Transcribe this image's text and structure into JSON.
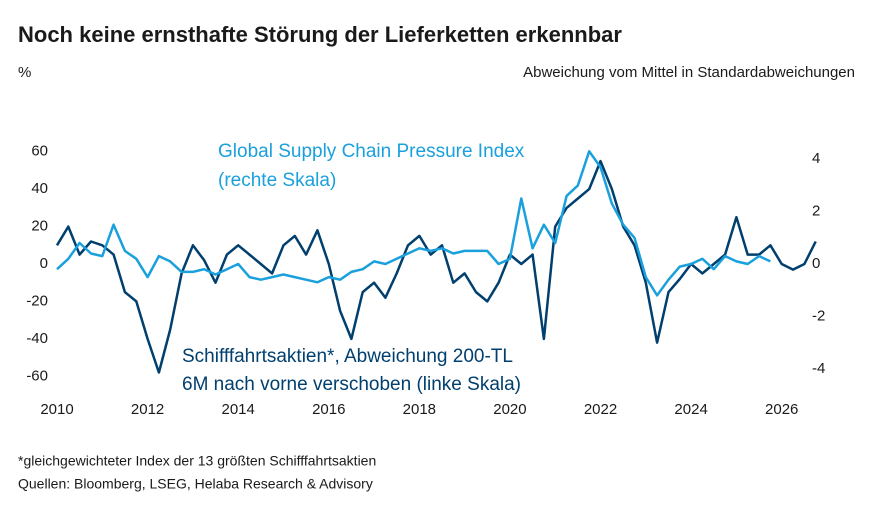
{
  "chart_data": {
    "type": "line",
    "title": "Noch keine ernsthafte Störung der Lieferketten erkennbar",
    "y_label": "%",
    "y2_label": "Abweichung vom Mittel in Standardabweichungen",
    "footnotes": [
      "*gleichgewichteter Index der 13 größten Schifffahrtsaktien",
      "Quellen: Bloomberg, LSEG, Helaba Research & Advisory"
    ],
    "x": [
      2010.0,
      2010.25,
      2010.5,
      2010.75,
      2011.0,
      2011.25,
      2011.5,
      2011.75,
      2012.0,
      2012.25,
      2012.5,
      2012.75,
      2013.0,
      2013.25,
      2013.5,
      2013.75,
      2014.0,
      2014.25,
      2014.5,
      2014.75,
      2015.0,
      2015.25,
      2015.5,
      2015.75,
      2016.0,
      2016.25,
      2016.5,
      2016.75,
      2017.0,
      2017.25,
      2017.5,
      2017.75,
      2018.0,
      2018.25,
      2018.5,
      2018.75,
      2019.0,
      2019.25,
      2019.5,
      2019.75,
      2020.0,
      2020.25,
      2020.5,
      2020.75,
      2021.0,
      2021.25,
      2021.5,
      2021.75,
      2022.0,
      2022.25,
      2022.5,
      2022.75,
      2023.0,
      2023.25,
      2023.5,
      2023.75,
      2024.0,
      2024.25,
      2024.5,
      2024.75,
      2025.0,
      2025.25,
      2025.5,
      2025.75,
      2026.0,
      2026.25,
      2026.5,
      2026.75
    ],
    "series": [
      {
        "name": "Schifffahrtsaktien*, Abweichung 200-TL",
        "name_note": "6M nach vorne verschoben (linke Skala)",
        "color": "#003f6e",
        "axis": "y",
        "values": [
          10,
          20,
          5,
          12,
          10,
          5,
          -15,
          -20,
          -40,
          -58,
          -35,
          -5,
          10,
          2,
          -10,
          5,
          10,
          5,
          0,
          -5,
          10,
          15,
          5,
          18,
          0,
          -25,
          -40,
          -15,
          -10,
          -18,
          -5,
          10,
          15,
          5,
          10,
          -10,
          -5,
          -15,
          -20,
          -10,
          5,
          0,
          5,
          -40,
          20,
          30,
          35,
          40,
          55,
          40,
          20,
          10,
          -10,
          -42,
          -15,
          -8,
          0,
          -5,
          0,
          5,
          25,
          5,
          5,
          10,
          0,
          -3,
          0,
          12
        ]
      },
      {
        "name": "Global Supply Chain Pressure Index",
        "name_note": "(rechte Skala)",
        "color": "#1aa0dc",
        "axis": "y2",
        "values": [
          -0.2,
          0.2,
          0.8,
          0.4,
          0.3,
          1.5,
          0.5,
          0.2,
          -0.5,
          0.3,
          0.1,
          -0.3,
          -0.3,
          -0.2,
          -0.4,
          -0.2,
          0.0,
          -0.5,
          -0.6,
          -0.5,
          -0.4,
          -0.5,
          -0.6,
          -0.7,
          -0.5,
          -0.6,
          -0.3,
          -0.2,
          0.1,
          0.0,
          0.2,
          0.4,
          0.6,
          0.5,
          0.6,
          0.4,
          0.5,
          0.5,
          0.5,
          0.0,
          0.2,
          2.5,
          0.6,
          1.5,
          0.8,
          2.6,
          3.0,
          4.3,
          3.7,
          2.3,
          1.5,
          1.0,
          -0.5,
          -1.2,
          -0.6,
          -0.1,
          0.0,
          0.2,
          -0.2,
          0.3,
          0.1,
          0.0,
          0.3,
          0.1,
          null,
          null,
          null,
          null
        ]
      }
    ],
    "xlim": [
      2010,
      2027
    ],
    "xticks": [
      2010,
      2012,
      2014,
      2016,
      2018,
      2020,
      2022,
      2024,
      2026
    ],
    "ylim": [
      -70,
      70
    ],
    "yticks": [
      -60,
      -40,
      -20,
      0,
      20,
      40,
      60
    ],
    "y2lim": [
      -5,
      5
    ],
    "y2ticks": [
      -4,
      -2,
      0,
      2,
      4
    ]
  }
}
